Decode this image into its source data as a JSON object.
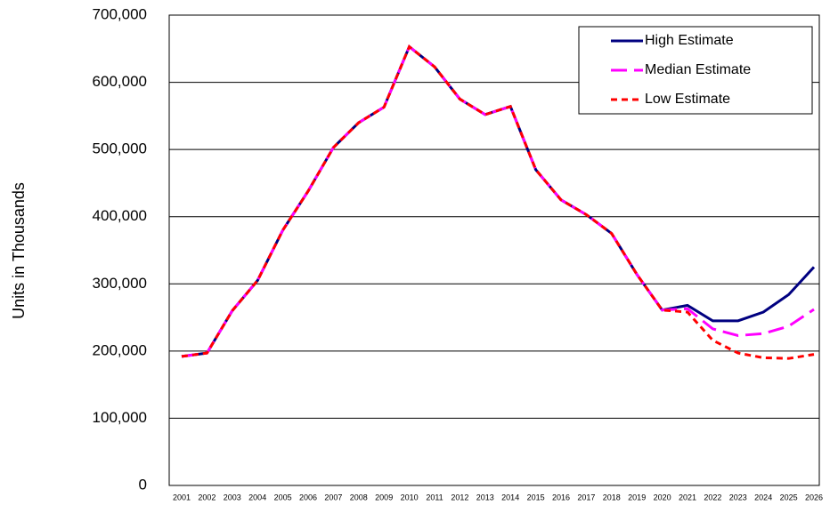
{
  "chart_data": {
    "type": "line",
    "y_label": "Units in Thousands",
    "categories": [
      "2001",
      "2002",
      "2003",
      "2004",
      "2005",
      "2006",
      "2007",
      "2008",
      "2009",
      "2010",
      "2011",
      "2012",
      "2013",
      "2014",
      "2015",
      "2016",
      "2017",
      "2018",
      "2019",
      "2020",
      "2021",
      "2022",
      "2023",
      "2024",
      "2025",
      "2026"
    ],
    "series": [
      {
        "name": "High Estimate",
        "color": "#000080",
        "linestyle": "solid",
        "values": [
          192000,
          197000,
          260000,
          305000,
          380000,
          438000,
          503000,
          540000,
          563000,
          653000,
          623000,
          575000,
          552000,
          564000,
          470000,
          425000,
          403000,
          375000,
          314000,
          261000,
          268000,
          245000,
          245000,
          258000,
          284000,
          325000
        ]
      },
      {
        "name": "Median Estimate",
        "color": "#ff00ff",
        "linestyle": "longdash",
        "values": [
          192000,
          197000,
          260000,
          305000,
          380000,
          438000,
          503000,
          540000,
          563000,
          653000,
          623000,
          575000,
          552000,
          564000,
          470000,
          425000,
          403000,
          375000,
          314000,
          261000,
          263000,
          233000,
          223000,
          226000,
          237000,
          262000
        ]
      },
      {
        "name": "Low Estimate",
        "color": "#ff0000",
        "linestyle": "dash",
        "values": [
          192000,
          197000,
          260000,
          305000,
          380000,
          438000,
          503000,
          540000,
          563000,
          653000,
          623000,
          575000,
          552000,
          564000,
          470000,
          425000,
          403000,
          375000,
          314000,
          261000,
          258000,
          216000,
          197000,
          190000,
          189000,
          195000
        ]
      }
    ],
    "ylim": [
      0,
      700000
    ],
    "yticks": [
      0,
      {
        "value": 100000,
        "label": "100,000"
      },
      {
        "value": 200000,
        "label": "200,000"
      },
      {
        "value": 300000,
        "label": "300,000"
      },
      {
        "value": 400000,
        "label": "400,000"
      },
      {
        "value": 500000,
        "label": "500,000"
      },
      {
        "value": 600000,
        "label": "600,000"
      },
      {
        "value": 700000,
        "label": "700,000"
      }
    ],
    "grid": true,
    "legend": "top-right"
  }
}
